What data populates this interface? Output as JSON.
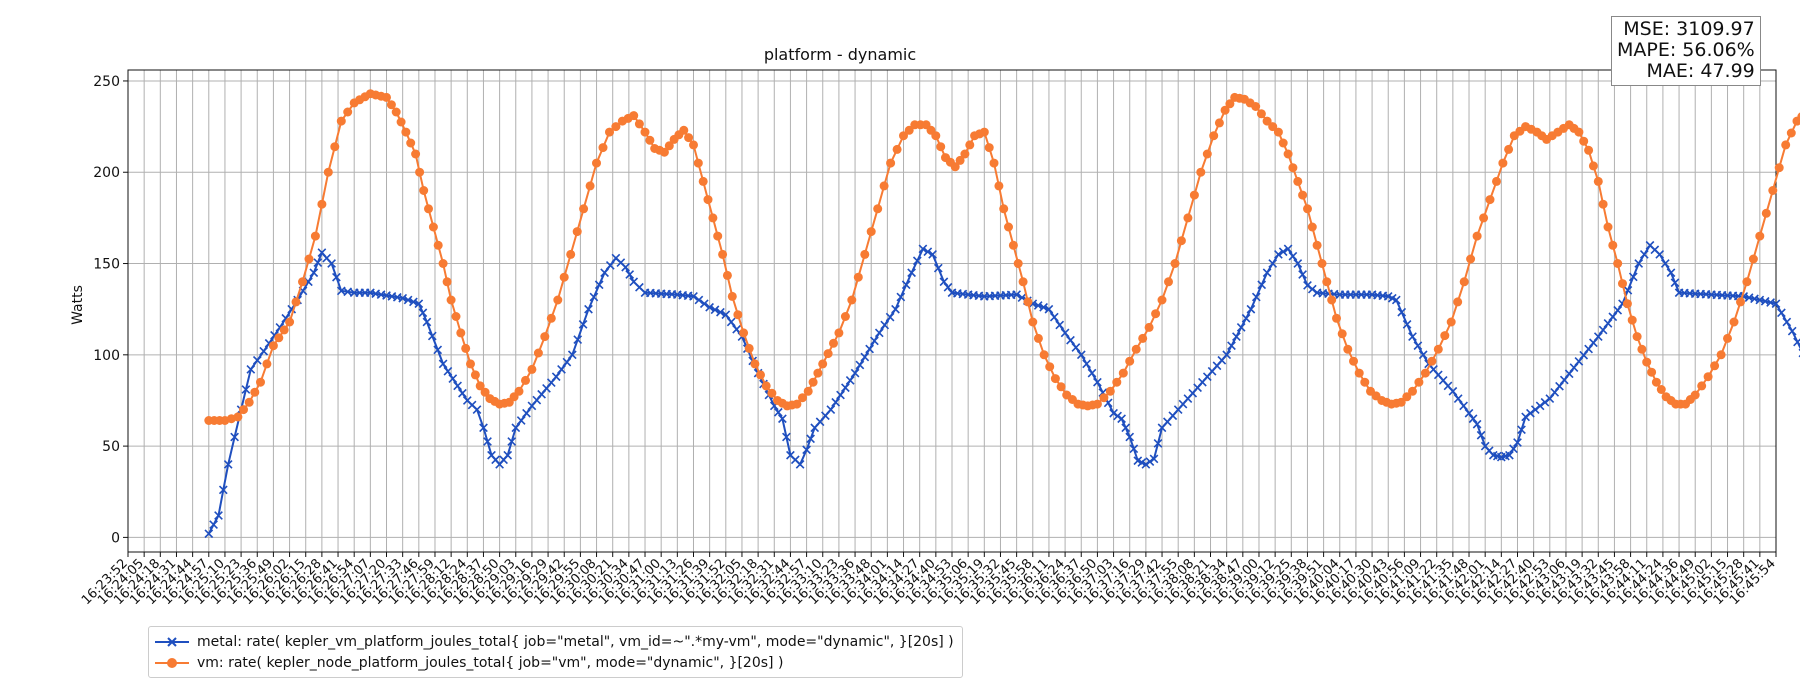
{
  "chart_data": {
    "type": "line",
    "title": "platform - dynamic",
    "ylabel": "Watts",
    "xlabel": "",
    "ylim": [
      -8,
      256
    ],
    "yticks": [
      0,
      50,
      100,
      150,
      200,
      250
    ],
    "grid": true,
    "legend_position": "below-left",
    "x_tick_labels": [
      "16:23:52",
      "16:24:05",
      "16:24:18",
      "16:24:31",
      "16:24:44",
      "16:24:57",
      "16:25:10",
      "16:25:23",
      "16:25:36",
      "16:25:49",
      "16:26:02",
      "16:26:15",
      "16:26:28",
      "16:26:41",
      "16:26:54",
      "16:27:07",
      "16:27:20",
      "16:27:33",
      "16:27:46",
      "16:27:59",
      "16:28:12",
      "16:28:24",
      "16:28:37",
      "16:28:50",
      "16:29:03",
      "16:29:16",
      "16:29:29",
      "16:29:42",
      "16:29:55",
      "16:30:08",
      "16:30:21",
      "16:30:34",
      "16:30:47",
      "16:31:00",
      "16:31:13",
      "16:31:26",
      "16:31:39",
      "16:31:52",
      "16:32:05",
      "16:32:18",
      "16:32:31",
      "16:32:44",
      "16:32:57",
      "16:33:10",
      "16:33:23",
      "16:33:36",
      "16:33:48",
      "16:34:01",
      "16:34:14",
      "16:34:27",
      "16:34:40",
      "16:34:53",
      "16:35:06",
      "16:35:19",
      "16:35:32",
      "16:35:45",
      "16:35:58",
      "16:36:11",
      "16:36:24",
      "16:36:37",
      "16:36:50",
      "16:37:03",
      "16:37:16",
      "16:37:29",
      "16:37:42",
      "16:37:55",
      "16:38:08",
      "16:38:21",
      "16:38:34",
      "16:38:47",
      "16:39:00",
      "16:39:12",
      "16:39:25",
      "16:39:38",
      "16:39:51",
      "16:40:04",
      "16:40:17",
      "16:40:30",
      "16:40:43",
      "16:40:56",
      "16:41:09",
      "16:41:22",
      "16:41:35",
      "16:41:48",
      "16:42:01",
      "16:42:14",
      "16:42:27",
      "16:42:40",
      "16:42:53",
      "16:43:06",
      "16:43:19",
      "16:43:32",
      "16:43:45",
      "16:43:58",
      "16:44:11",
      "16:44:24",
      "16:44:36",
      "16:44:49",
      "16:45:02",
      "16:45:15",
      "16:45:28",
      "16:45:41",
      "16:45:54"
    ],
    "x_keypoints_index": [
      5,
      99
    ],
    "series": [
      {
        "name": "metal: rate( kepler_vm_platform_joules_total{ job=\"metal\", vm_id=~\".*my-vm\", mode=\"dynamic\", }[20s] )",
        "color": "#1f4fbf",
        "marker": "x",
        "keypoints": [
          [
            5,
            2
          ],
          [
            5.6,
            12
          ],
          [
            6.2,
            40
          ],
          [
            7,
            70
          ],
          [
            7.6,
            92
          ],
          [
            8.4,
            102
          ],
          [
            9.4,
            115
          ],
          [
            10.5,
            130
          ],
          [
            11.5,
            145
          ],
          [
            12.0,
            156
          ],
          [
            12.6,
            150
          ],
          [
            13.2,
            135
          ],
          [
            14,
            134
          ],
          [
            15,
            134
          ],
          [
            17,
            131
          ],
          [
            18,
            128
          ],
          [
            18.5,
            118
          ],
          [
            19.5,
            95
          ],
          [
            21,
            75
          ],
          [
            21.6,
            70
          ],
          [
            22.0,
            60
          ],
          [
            22.5,
            45
          ],
          [
            23.0,
            40
          ],
          [
            23.5,
            45
          ],
          [
            24,
            60
          ],
          [
            25,
            72
          ],
          [
            26.5,
            88
          ],
          [
            27.5,
            100
          ],
          [
            28.5,
            125
          ],
          [
            29.5,
            145
          ],
          [
            30.2,
            153
          ],
          [
            30.8,
            148
          ],
          [
            31.3,
            140
          ],
          [
            32,
            134
          ],
          [
            34,
            133
          ],
          [
            35,
            132
          ],
          [
            36,
            126
          ],
          [
            37,
            122
          ],
          [
            38,
            110
          ],
          [
            39,
            90
          ],
          [
            40,
            72
          ],
          [
            40.5,
            65
          ],
          [
            41,
            45
          ],
          [
            41.6,
            40
          ],
          [
            42,
            48
          ],
          [
            42.5,
            60
          ],
          [
            43.5,
            70
          ],
          [
            45,
            90
          ],
          [
            46.5,
            112
          ],
          [
            47.5,
            125
          ],
          [
            48.5,
            145
          ],
          [
            49.2,
            158
          ],
          [
            49.8,
            155
          ],
          [
            50.5,
            140
          ],
          [
            51,
            134
          ],
          [
            53,
            132
          ],
          [
            55,
            133
          ],
          [
            56,
            128
          ],
          [
            57,
            125
          ],
          [
            58,
            112
          ],
          [
            59,
            100
          ],
          [
            60,
            85
          ],
          [
            61,
            68
          ],
          [
            61.5,
            65
          ],
          [
            62,
            55
          ],
          [
            62.5,
            42
          ],
          [
            63,
            40
          ],
          [
            63.5,
            43
          ],
          [
            64,
            60
          ],
          [
            65,
            70
          ],
          [
            66.5,
            85
          ],
          [
            68,
            100
          ],
          [
            69.5,
            125
          ],
          [
            70.5,
            145
          ],
          [
            71.2,
            155
          ],
          [
            71.8,
            158
          ],
          [
            72.4,
            150
          ],
          [
            73,
            138
          ],
          [
            73.6,
            134
          ],
          [
            75,
            133
          ],
          [
            77,
            133
          ],
          [
            78,
            132
          ],
          [
            78.5,
            130
          ],
          [
            79.5,
            110
          ],
          [
            80.5,
            95
          ],
          [
            82,
            80
          ],
          [
            83,
            68
          ],
          [
            83.5,
            62
          ],
          [
            84,
            50
          ],
          [
            84.5,
            45
          ],
          [
            85,
            44
          ],
          [
            85.5,
            45
          ],
          [
            86,
            52
          ],
          [
            86.5,
            66
          ],
          [
            88,
            76
          ],
          [
            89.5,
            93
          ],
          [
            91,
            110
          ],
          [
            92.5,
            128
          ],
          [
            93.5,
            150
          ],
          [
            94.2,
            160
          ],
          [
            94.8,
            155
          ],
          [
            95.5,
            145
          ],
          [
            96,
            134
          ],
          [
            98,
            133
          ],
          [
            100,
            132
          ],
          [
            102,
            128
          ],
          [
            103,
            113
          ],
          [
            104,
            95
          ],
          [
            105,
            80
          ],
          [
            106,
            75
          ],
          [
            107,
            67
          ],
          [
            107.6,
            68
          ]
        ]
      },
      {
        "name": "vm: rate( kepler_node_platform_joules_total{ job=\"vm\", mode=\"dynamic\", }[20s] )",
        "color": "#f77b33",
        "marker": "o",
        "keypoints": [
          [
            5,
            64
          ],
          [
            6,
            64
          ],
          [
            6.8,
            66
          ],
          [
            7.5,
            74
          ],
          [
            8.2,
            85
          ],
          [
            9,
            105
          ],
          [
            10,
            118
          ],
          [
            10.8,
            140
          ],
          [
            11.6,
            165
          ],
          [
            12.4,
            200
          ],
          [
            13.2,
            228
          ],
          [
            14,
            238
          ],
          [
            15,
            243
          ],
          [
            16,
            241
          ],
          [
            16.6,
            233
          ],
          [
            17.2,
            222
          ],
          [
            17.8,
            210
          ],
          [
            18.3,
            190
          ],
          [
            18.9,
            170
          ],
          [
            19.5,
            150
          ],
          [
            20,
            130
          ],
          [
            20.6,
            112
          ],
          [
            21.2,
            95
          ],
          [
            21.8,
            83
          ],
          [
            22.4,
            76
          ],
          [
            23.0,
            73
          ],
          [
            23.6,
            74
          ],
          [
            24.2,
            80
          ],
          [
            25,
            92
          ],
          [
            25.8,
            110
          ],
          [
            26.6,
            130
          ],
          [
            27.4,
            155
          ],
          [
            28.2,
            180
          ],
          [
            29,
            205
          ],
          [
            29.8,
            222
          ],
          [
            30.6,
            228
          ],
          [
            31.3,
            231
          ],
          [
            32,
            222
          ],
          [
            32.6,
            213
          ],
          [
            33.2,
            211
          ],
          [
            33.8,
            218
          ],
          [
            34.4,
            223
          ],
          [
            35,
            215
          ],
          [
            35.6,
            195
          ],
          [
            36.2,
            175
          ],
          [
            36.8,
            155
          ],
          [
            37.4,
            132
          ],
          [
            38.1,
            112
          ],
          [
            38.8,
            95
          ],
          [
            39.5,
            83
          ],
          [
            40.2,
            75
          ],
          [
            40.8,
            72
          ],
          [
            41.4,
            73
          ],
          [
            42.1,
            80
          ],
          [
            43,
            95
          ],
          [
            44,
            112
          ],
          [
            44.8,
            130
          ],
          [
            45.6,
            155
          ],
          [
            46.4,
            180
          ],
          [
            47.2,
            205
          ],
          [
            48,
            220
          ],
          [
            48.7,
            226
          ],
          [
            49.4,
            226
          ],
          [
            50,
            220
          ],
          [
            50.6,
            208
          ],
          [
            51.2,
            203
          ],
          [
            51.8,
            210
          ],
          [
            52.4,
            220
          ],
          [
            53,
            222
          ],
          [
            53.6,
            205
          ],
          [
            54.2,
            180
          ],
          [
            54.8,
            160
          ],
          [
            55.4,
            140
          ],
          [
            56,
            118
          ],
          [
            56.7,
            100
          ],
          [
            57.4,
            87
          ],
          [
            58.1,
            78
          ],
          [
            58.8,
            73
          ],
          [
            59.4,
            72
          ],
          [
            60,
            73
          ],
          [
            60.8,
            80
          ],
          [
            61.6,
            90
          ],
          [
            62.4,
            103
          ],
          [
            63.2,
            115
          ],
          [
            64,
            130
          ],
          [
            64.8,
            150
          ],
          [
            65.6,
            175
          ],
          [
            66.4,
            200
          ],
          [
            67.2,
            220
          ],
          [
            67.9,
            234
          ],
          [
            68.5,
            241
          ],
          [
            69.1,
            240
          ],
          [
            69.8,
            236
          ],
          [
            70.5,
            228
          ],
          [
            71.2,
            222
          ],
          [
            71.8,
            210
          ],
          [
            72.4,
            195
          ],
          [
            73,
            180
          ],
          [
            73.6,
            160
          ],
          [
            74.2,
            140
          ],
          [
            74.8,
            120
          ],
          [
            75.5,
            103
          ],
          [
            76.2,
            90
          ],
          [
            76.9,
            80
          ],
          [
            77.6,
            75
          ],
          [
            78.2,
            73
          ],
          [
            78.8,
            74
          ],
          [
            79.5,
            80
          ],
          [
            80.3,
            90
          ],
          [
            81.1,
            103
          ],
          [
            81.9,
            118
          ],
          [
            82.7,
            140
          ],
          [
            83.5,
            165
          ],
          [
            84.3,
            185
          ],
          [
            85.1,
            205
          ],
          [
            85.8,
            220
          ],
          [
            86.5,
            225
          ],
          [
            87.2,
            222
          ],
          [
            87.8,
            218
          ],
          [
            88.5,
            222
          ],
          [
            89.2,
            226
          ],
          [
            89.8,
            222
          ],
          [
            90.4,
            212
          ],
          [
            91,
            195
          ],
          [
            91.6,
            170
          ],
          [
            92.2,
            150
          ],
          [
            92.8,
            128
          ],
          [
            93.4,
            110
          ],
          [
            94,
            96
          ],
          [
            94.6,
            85
          ],
          [
            95.2,
            77
          ],
          [
            95.8,
            73
          ],
          [
            96.4,
            73
          ],
          [
            97,
            78
          ],
          [
            97.8,
            88
          ],
          [
            98.6,
            100
          ],
          [
            99.4,
            118
          ],
          [
            100.2,
            140
          ],
          [
            101,
            165
          ],
          [
            101.8,
            190
          ],
          [
            102.6,
            215
          ],
          [
            103.3,
            228
          ],
          [
            103.9,
            233
          ],
          [
            104.5,
            230
          ],
          [
            105.1,
            222
          ],
          [
            105.7,
            220
          ],
          [
            106.3,
            224
          ],
          [
            106.9,
            220
          ],
          [
            107.4,
            210
          ],
          [
            107.9,
            195
          ],
          [
            108.4,
            178
          ],
          [
            108.9,
            162
          ],
          [
            109.4,
            140
          ],
          [
            109.9,
            120
          ],
          [
            110.4,
            105
          ],
          [
            110.9,
            92
          ],
          [
            111.4,
            84
          ],
          [
            111.9,
            81
          ]
        ]
      }
    ]
  },
  "metrics_box": {
    "mse": "MSE: 3109.97",
    "mape": "MAPE: 56.06%",
    "mae": "MAE: 47.99"
  }
}
